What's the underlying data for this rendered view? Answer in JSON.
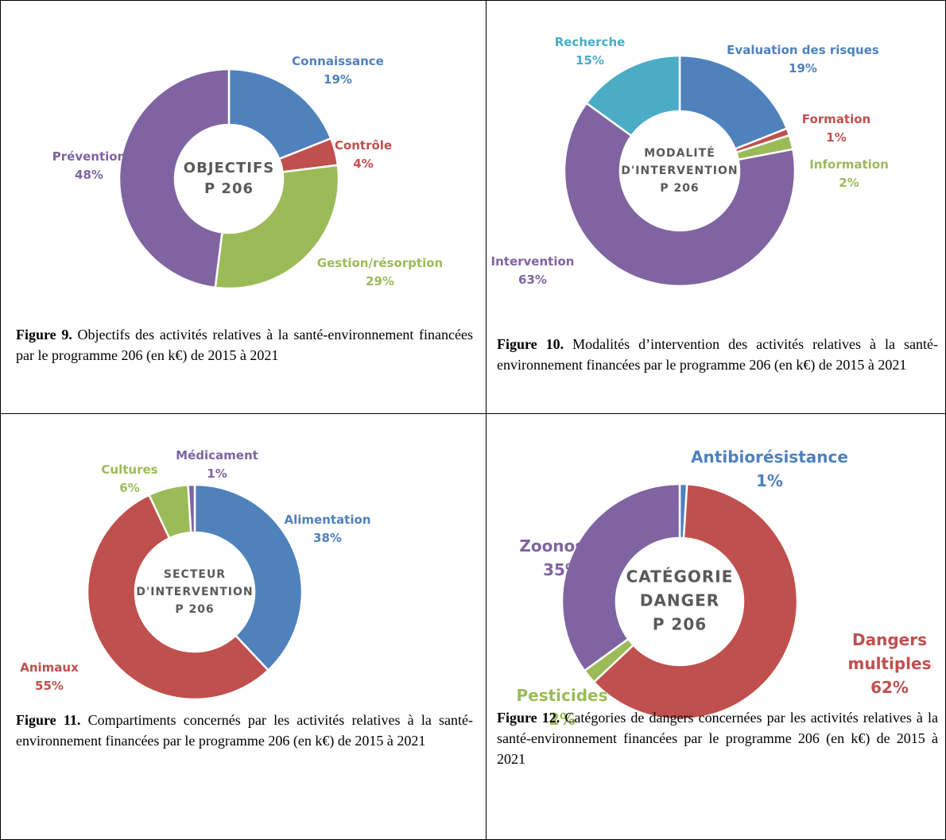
{
  "chart_data": [
    {
      "type": "pie",
      "donut": true,
      "center_label": [
        "OBJECTIFS",
        "P 206"
      ],
      "categories": [
        "Connaissance",
        "Contrôle",
        "Gestion/résorption",
        "Prévention"
      ],
      "values": [
        19,
        4,
        29,
        48
      ],
      "value_labels": [
        "19%",
        "4%",
        "29%",
        "48%"
      ],
      "colors": [
        "#4f81bd",
        "#c0504d",
        "#9bbb59",
        "#8064a2"
      ],
      "caption": {
        "label": "Figure 9.",
        "text": "Objectifs des activités relatives à la santé-environnement financées par le programme 206 (en  k€) de 2015 à 2021"
      }
    },
    {
      "type": "pie",
      "donut": true,
      "center_label": [
        "MODALITÉ",
        "D'INTERVENTION",
        "P 206"
      ],
      "categories": [
        "Evaluation des risques",
        "Formation",
        "Information",
        "Intervention",
        "Recherche"
      ],
      "values": [
        19,
        1,
        2,
        63,
        15
      ],
      "value_labels": [
        "19%",
        "1%",
        "2%",
        "63%",
        "15%"
      ],
      "colors": [
        "#4f81bd",
        "#c0504d",
        "#9bbb59",
        "#8064a2",
        "#4bacc6"
      ],
      "caption": {
        "label": "Figure 10.",
        "text": "Modalités d’intervention des activités relatives à la santé-environnement financées par le programme 206 (en  k€) de 2015 à 2021"
      }
    },
    {
      "type": "pie",
      "donut": true,
      "center_label": [
        "SECTEUR",
        "D'INTERVENTION",
        "P 206"
      ],
      "categories": [
        "Alimentation",
        "Animaux",
        "Cultures",
        "Médicament"
      ],
      "values": [
        38,
        55,
        6,
        1
      ],
      "value_labels": [
        "38%",
        "55%",
        "6%",
        "1%"
      ],
      "colors": [
        "#4f81bd",
        "#c0504d",
        "#9bbb59",
        "#8064a2"
      ],
      "caption": {
        "label": "Figure 11.",
        "text": "Compartiments concernés par les activités relatives à la santé-environnement financées par le programme 206 (en  k€) de 2015 à 2021"
      }
    },
    {
      "type": "pie",
      "donut": true,
      "center_label": [
        "CATÉGORIE",
        "DANGER",
        "P 206"
      ],
      "categories": [
        "Antibiorésistance",
        "Dangers multiples",
        "Pesticides",
        "Zoonoses"
      ],
      "values": [
        1,
        62,
        2,
        35
      ],
      "value_labels": [
        "1%",
        "62%",
        "2%",
        "35%"
      ],
      "colors": [
        "#4f81bd",
        "#c0504d",
        "#9bbb59",
        "#8064a2"
      ],
      "caption": {
        "label": "Figure 12.",
        "text": "Catégories de dangers concernées par les activités relatives à la santé-environnement financées par le programme 206 (en  k€) de 2015 à 2021"
      }
    }
  ]
}
